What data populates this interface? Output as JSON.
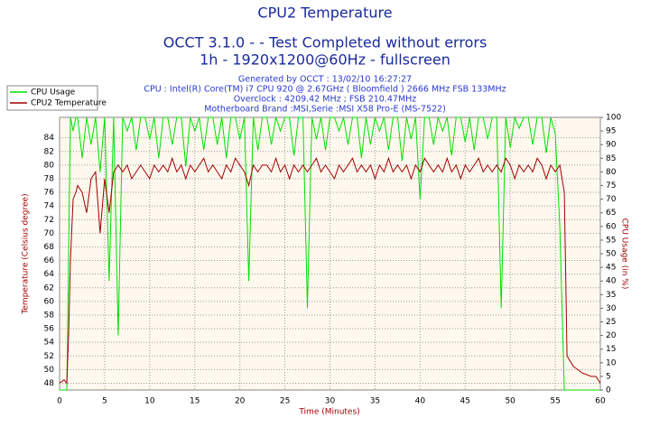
{
  "chart_data": {
    "type": "line",
    "title": "CPU2 Temperature",
    "subtitle": [
      "OCCT 3.1.0 -  - Test Completed without errors",
      "1h - 1920x1200@60Hz - fullscreen"
    ],
    "info": [
      "Generated by OCCT : 13/02/10 16:27:27",
      "CPU : Intel(R) Core(TM) i7 CPU 920 @ 2.67GHz ( Bloomfield ) 2666 MHz FSB 133MHz",
      "Overclock : 4209.42 MHz ; FSB 210.47MHz",
      "Motherboard Brand :MSI,Serie :MSI X58 Pro-E (MS-7522)"
    ],
    "x_label": "Time (Minutes)",
    "y_label": "Temperature (Celsius degree)",
    "y2_label": "CPU Usage (in %)",
    "x": [
      0,
      0.5,
      0.8,
      1.0,
      1.2,
      1.5,
      1.8,
      2,
      2.5,
      3,
      3.5,
      4,
      4.5,
      5,
      5.5,
      6,
      6.5,
      7,
      7.5,
      8,
      8.5,
      9,
      9.5,
      10,
      10.5,
      11,
      11.5,
      12,
      12.5,
      13,
      13.5,
      14,
      14.5,
      15,
      15.5,
      16,
      16.5,
      17,
      17.5,
      18,
      18.5,
      19,
      19.5,
      20,
      20.5,
      21,
      21.5,
      22,
      22.5,
      23,
      23.5,
      24,
      24.5,
      25,
      25.5,
      26,
      26.5,
      27,
      27.5,
      28,
      28.5,
      29,
      29.5,
      30,
      30.5,
      31,
      31.5,
      32,
      32.5,
      33,
      33.5,
      34,
      34.5,
      35,
      35.5,
      36,
      36.5,
      37,
      37.5,
      38,
      38.5,
      39,
      39.5,
      40,
      40.5,
      41,
      41.5,
      42,
      42.5,
      43,
      43.5,
      44,
      44.5,
      45,
      45.5,
      46,
      46.5,
      47,
      47.5,
      48,
      48.5,
      49,
      49.5,
      50,
      50.5,
      51,
      51.5,
      52,
      52.5,
      53,
      53.5,
      54,
      54.5,
      55,
      55.5,
      56,
      56.3,
      57,
      58,
      59,
      59.5,
      60
    ],
    "series": [
      {
        "name": "CPU Usage",
        "color": "#00e000",
        "axis": "y2",
        "values": [
          0,
          0,
          0,
          50,
          100,
          95,
          100,
          100,
          85,
          100,
          90,
          100,
          80,
          100,
          40,
          100,
          20,
          100,
          95,
          100,
          88,
          100,
          100,
          92,
          100,
          85,
          100,
          100,
          90,
          100,
          100,
          82,
          100,
          95,
          100,
          88,
          100,
          100,
          90,
          100,
          85,
          100,
          100,
          92,
          100,
          40,
          100,
          88,
          100,
          100,
          90,
          100,
          95,
          100,
          100,
          86,
          100,
          100,
          30,
          100,
          92,
          100,
          88,
          100,
          100,
          95,
          100,
          90,
          100,
          100,
          85,
          100,
          90,
          100,
          95,
          100,
          88,
          100,
          100,
          84,
          100,
          92,
          100,
          70,
          100,
          100,
          90,
          100,
          95,
          100,
          86,
          100,
          100,
          91,
          100,
          88,
          100,
          100,
          92,
          100,
          100,
          30,
          100,
          89,
          100,
          96,
          100,
          100,
          90,
          100,
          100,
          87,
          100,
          94,
          60,
          0,
          0,
          0,
          0,
          0,
          0,
          0
        ]
      },
      {
        "name": "CPU2 Temperature",
        "color": "#a00000",
        "values": [
          48,
          48.5,
          48,
          55,
          66,
          75,
          76,
          77,
          76,
          73,
          78,
          79,
          70,
          78,
          73,
          79,
          80,
          79,
          80,
          78,
          79,
          80,
          79,
          78,
          80,
          79,
          80,
          79,
          81,
          79,
          80,
          78,
          80,
          79,
          80,
          81,
          79,
          80,
          79,
          78,
          80,
          79,
          81,
          80,
          79,
          77,
          80,
          79,
          80,
          80,
          79,
          81,
          79,
          80,
          78,
          80,
          79,
          80,
          79,
          80,
          81,
          79,
          80,
          79,
          78,
          80,
          79,
          80,
          81,
          79,
          80,
          79,
          80,
          78,
          80,
          79,
          81,
          79,
          80,
          79,
          80,
          78,
          80,
          79,
          81,
          80,
          79,
          80,
          79,
          81,
          79,
          80,
          78,
          80,
          79,
          80,
          81,
          79,
          80,
          79,
          80,
          79,
          81,
          80,
          78,
          80,
          79,
          80,
          79,
          81,
          80,
          78,
          80,
          79,
          80,
          76,
          52,
          50.5,
          49.5,
          49,
          49,
          48
        ]
      }
    ],
    "xlim": [
      0,
      60
    ],
    "xticks": [
      0,
      5,
      10,
      15,
      20,
      25,
      30,
      35,
      40,
      45,
      50,
      55,
      60
    ],
    "ylim": [
      47,
      87
    ],
    "yticks": [
      48,
      50,
      52,
      54,
      56,
      58,
      60,
      62,
      64,
      66,
      68,
      70,
      72,
      74,
      76,
      78,
      80,
      82,
      84
    ],
    "y2lim": [
      0,
      100
    ],
    "y2ticks": [
      0,
      5,
      10,
      15,
      20,
      25,
      30,
      35,
      40,
      45,
      50,
      55,
      60,
      65,
      70,
      75,
      80,
      85,
      90,
      95,
      100
    ],
    "grid": true,
    "legend": "top-left"
  }
}
